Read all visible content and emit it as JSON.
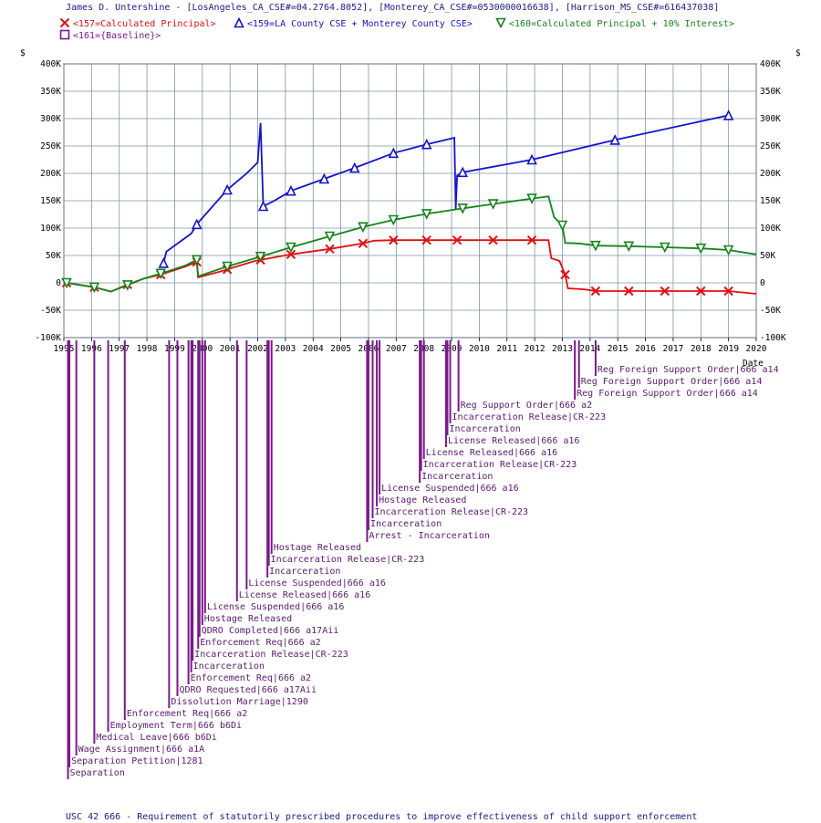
{
  "chart_data": {
    "type": "line",
    "title": "James D. Untershine - [LosAngeles_CA_CSE#=04.2764.8052], [Monterey_CA_CSE#=0530000016638], [Harrison_MS_CSE#=616437038]",
    "ylabel_left": "$",
    "ylabel_right": "$",
    "xlabel": "Date",
    "footnote": "USC 42 666 - Requirement of statutorily prescribed procedures to improve effectiveness of child support enforcement",
    "xlim": [
      1995,
      2020
    ],
    "ylim": [
      -100000,
      400000
    ],
    "x_ticks": [
      "1995",
      "1996",
      "1997",
      "1998",
      "1999",
      "2000",
      "2001",
      "2002",
      "2003",
      "2004",
      "2005",
      "2006",
      "2007",
      "2008",
      "2009",
      "2010",
      "2011",
      "2012",
      "2013",
      "2014",
      "2015",
      "2016",
      "2017",
      "2018",
      "2019",
      "2020"
    ],
    "y_ticks": [
      "-100K",
      "-50K",
      "0",
      "50K",
      "100K",
      "150K",
      "200K",
      "250K",
      "300K",
      "350K",
      "400K"
    ],
    "grid": true,
    "legend_position": "top-left",
    "series": [
      {
        "name": "<157=Calculated Principal>",
        "color": "#e01010",
        "marker": "x",
        "points": [
          [
            1995.1,
            0
          ],
          [
            1996.1,
            -8000
          ],
          [
            1996.7,
            -16000
          ],
          [
            1997.3,
            -3000
          ],
          [
            1997.9,
            8000
          ],
          [
            1998.5,
            15000
          ],
          [
            1999.4,
            30000
          ],
          [
            1999.8,
            38000
          ],
          [
            1999.85,
            10000
          ],
          [
            2000.6,
            20000
          ],
          [
            2001.9,
            40000
          ],
          [
            2003.2,
            52000
          ],
          [
            2004.6,
            62000
          ],
          [
            2005.8,
            72000
          ],
          [
            2006.2,
            77000
          ],
          [
            2006.9,
            78000
          ],
          [
            2008.1,
            78000
          ],
          [
            2009.2,
            78000
          ],
          [
            2010.5,
            78000
          ],
          [
            2011.9,
            78000
          ],
          [
            2012.5,
            78000
          ],
          [
            2012.6,
            45000
          ],
          [
            2012.9,
            40000
          ],
          [
            2013.1,
            15000
          ],
          [
            2013.2,
            -10000
          ],
          [
            2013.8,
            -12000
          ],
          [
            2014.2,
            -15000
          ],
          [
            2015.4,
            -15000
          ],
          [
            2016.7,
            -15000
          ],
          [
            2018.0,
            -15000
          ],
          [
            2019.0,
            -15000
          ],
          [
            2020.0,
            -20000
          ]
        ],
        "marker_x": [
          1995.1,
          1996.1,
          1997.3,
          1998.5,
          1999.8,
          2000.9,
          2002.1,
          2003.2,
          2004.6,
          2005.8,
          2006.9,
          2008.1,
          2009.2,
          2010.5,
          2011.9,
          2013.1,
          2014.2,
          2015.4,
          2016.7,
          2018.0,
          2019.0
        ]
      },
      {
        "name": "<159=LA County CSE + Monterey County CSE>",
        "color": "#1414c8",
        "marker": "triangle-up",
        "points": [
          [
            1998.6,
            36000
          ],
          [
            1998.7,
            57000
          ],
          [
            1999.6,
            90000
          ],
          [
            1999.8,
            107000
          ],
          [
            2000.9,
            170000
          ],
          [
            2001.6,
            200000
          ],
          [
            2002.0,
            220000
          ],
          [
            2002.1,
            292000
          ],
          [
            2002.2,
            140000
          ],
          [
            2002.6,
            150000
          ],
          [
            2003.2,
            168000
          ],
          [
            2004.4,
            190000
          ],
          [
            2005.5,
            210000
          ],
          [
            2006.9,
            237000
          ],
          [
            2008.1,
            253000
          ],
          [
            2009.1,
            265000
          ],
          [
            2009.15,
            135000
          ],
          [
            2009.2,
            196000
          ],
          [
            2009.4,
            202000
          ],
          [
            2011.9,
            225000
          ],
          [
            2014.9,
            261000
          ],
          [
            2019.0,
            306000
          ]
        ],
        "marker_x": [
          1998.6,
          1999.8,
          2000.9,
          2002.2,
          2003.2,
          2004.4,
          2005.5,
          2006.9,
          2008.1,
          2009.4,
          2011.9,
          2014.9,
          2019.0
        ]
      },
      {
        "name": "<160=Calculated Principal + 10% Interest>",
        "color": "#14841a",
        "marker": "triangle-down",
        "points": [
          [
            1995.1,
            0
          ],
          [
            1996.1,
            -8000
          ],
          [
            1996.7,
            -16000
          ],
          [
            1997.3,
            -4000
          ],
          [
            1997.9,
            8000
          ],
          [
            1998.5,
            17000
          ],
          [
            1999.4,
            32000
          ],
          [
            1999.8,
            42000
          ],
          [
            1999.85,
            12000
          ],
          [
            2000.9,
            30000
          ],
          [
            2002.1,
            48000
          ],
          [
            2003.2,
            65000
          ],
          [
            2004.6,
            85000
          ],
          [
            2005.8,
            102000
          ],
          [
            2006.9,
            115000
          ],
          [
            2008.1,
            126000
          ],
          [
            2009.4,
            136000
          ],
          [
            2010.5,
            144000
          ],
          [
            2011.9,
            154000
          ],
          [
            2012.5,
            158000
          ],
          [
            2012.7,
            120000
          ],
          [
            2013.0,
            105000
          ],
          [
            2013.1,
            73000
          ],
          [
            2013.6,
            72000
          ],
          [
            2014.2,
            68000
          ],
          [
            2015.4,
            67000
          ],
          [
            2016.7,
            65000
          ],
          [
            2018.0,
            63000
          ],
          [
            2019.0,
            60000
          ],
          [
            2020.0,
            52000
          ]
        ],
        "marker_x": [
          1995.1,
          1996.1,
          1997.3,
          1998.5,
          1999.8,
          2000.9,
          2002.1,
          2003.2,
          2004.6,
          2005.8,
          2006.9,
          2008.1,
          2009.4,
          2010.5,
          2011.9,
          2013.0,
          2014.2,
          2015.4,
          2016.7,
          2018.0,
          2019.0
        ]
      },
      {
        "name": "<161={Baseline}>",
        "color": "#7a1a8a",
        "marker": "square",
        "points": [],
        "marker_x": []
      }
    ],
    "events": [
      {
        "x": 1995.15,
        "label": "Separation"
      },
      {
        "x": 1995.2,
        "label": "Separation Petition|1281"
      },
      {
        "x": 1995.45,
        "label": "Wage Assignment|666 a1A"
      },
      {
        "x": 1996.1,
        "label": "Medical Leave|666 b6Di"
      },
      {
        "x": 1996.6,
        "label": "Employment Term|666 b6Di"
      },
      {
        "x": 1997.2,
        "label": "Enforcement Req|666 a2"
      },
      {
        "x": 1998.8,
        "label": "Dissolution Marriage|1290"
      },
      {
        "x": 1999.1,
        "label": "QDRO Requested|666 a17Aii"
      },
      {
        "x": 1999.5,
        "label": "Enforcement Req|666 a2"
      },
      {
        "x": 1999.6,
        "label": "Incarceration"
      },
      {
        "x": 1999.65,
        "label": "Incarceration Release|CR-223"
      },
      {
        "x": 1999.85,
        "label": "Enforcement Req|666 a2"
      },
      {
        "x": 1999.9,
        "label": "QDRO Completed|666 a17Aii"
      },
      {
        "x": 2000.0,
        "label": "Hostage Released"
      },
      {
        "x": 2000.1,
        "label": "License Suspended|666 a16"
      },
      {
        "x": 2001.25,
        "label": "License Released|666 a16"
      },
      {
        "x": 2001.6,
        "label": "License Suspended|666 a16"
      },
      {
        "x": 2002.35,
        "label": "Incarceration"
      },
      {
        "x": 2002.4,
        "label": "Incarceration Release|CR-223"
      },
      {
        "x": 2002.5,
        "label": "Hostage Released"
      },
      {
        "x": 2005.95,
        "label": "Arrest - Incarceration"
      },
      {
        "x": 2006.0,
        "label": "Incarceration"
      },
      {
        "x": 2006.15,
        "label": "Incarceration Release|CR-223"
      },
      {
        "x": 2006.3,
        "label": "Hostage Released"
      },
      {
        "x": 2006.4,
        "label": "License Suspended|666 a16"
      },
      {
        "x": 2007.85,
        "label": "Incarceration"
      },
      {
        "x": 2007.9,
        "label": "Incarceration Release|CR-223"
      },
      {
        "x": 2008.0,
        "label": "License Released|666 a16"
      },
      {
        "x": 2008.8,
        "label": "License Released|666 a16"
      },
      {
        "x": 2008.85,
        "label": "Incarceration"
      },
      {
        "x": 2008.95,
        "label": "Incarceration Release|CR-223"
      },
      {
        "x": 2009.25,
        "label": "Reg Support Order|666 a2"
      },
      {
        "x": 2013.45,
        "label": "Reg Foreign Support Order|666 a14"
      },
      {
        "x": 2013.6,
        "label": "Reg Foreign Support Order|666 a14"
      },
      {
        "x": 2014.2,
        "label": "Reg Foreign Support Order|666 a14"
      }
    ]
  }
}
